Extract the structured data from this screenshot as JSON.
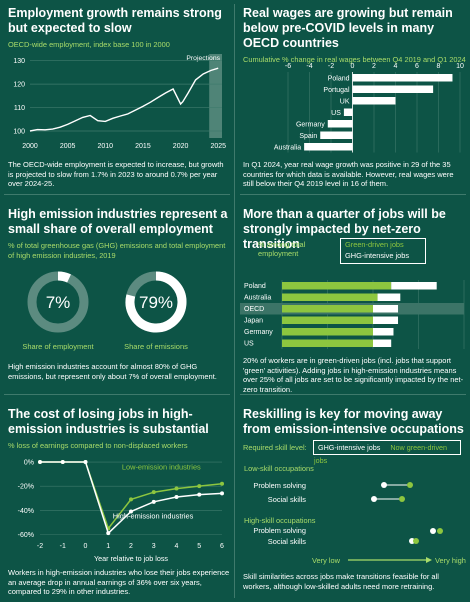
{
  "colors": {
    "bg": "#0d5446",
    "green": "#8dc63f",
    "lightgreen": "#a9dc6a",
    "white": "#ffffff",
    "grid": "#3f7a6c"
  },
  "panel1": {
    "title": "Employment growth remains strong but expected to slow",
    "subtitle": "OECD-wide employment, index base 100 in 2000",
    "projections_label": "Projections",
    "text": "The OECD-wide employment is expected to increase, but growth is projected to slow from 1.7% in 2023 to around 0.7% per year over 2024-25."
  },
  "panel2": {
    "title": "Real wages are growing but remain below pre-COVID levels in many OECD countries",
    "subtitle": "Cumulative % change in real wages between Q4 2019 and Q1 2024",
    "text": "In Q1 2024, year real wage growth was positive in 29 of the 35 countries for which data is available. However, real wages were still below their Q4 2019 level in 16 of them."
  },
  "panel3": {
    "title": "High emission industries represent a small share of overall employment",
    "subtitle": "% of total greenhouse gas (GHG) emissions and total employment of high emission industries, 2019",
    "donut1_value": "7%",
    "donut1_label": "Share of employment",
    "donut1_pct": 7,
    "donut2_value": "79%",
    "donut2_label": "Share of emissions",
    "donut2_pct": 79,
    "text": "High emission industries account for almost 80% of GHG emissions, but represent only about 7% of overall employment."
  },
  "panel4": {
    "title": "More than a quarter of jobs will be strongly impacted by net-zero transition",
    "axis_label": "% among total employment",
    "legend_green": "Green-driven jobs",
    "legend_white": "GHG-intensive jobs",
    "text": "20% of workers are in green-driven jobs (incl. jobs that support 'green' activities). Adding jobs in high-emission industries means over 25% of all jobs are set to be significantly impacted by the net-zero transition."
  },
  "panel5": {
    "title": "The cost of losing jobs in high-emission industries is substantial",
    "subtitle": "% loss of earnings compared to non-displaced workers",
    "label_low": "Low-emission industries",
    "label_high": "High-emission industries",
    "text": "Workers in high-emission industries who lose their jobs experience an average drop in annual earnings of 36% over six years, compared to 29% in other industries."
  },
  "panel6": {
    "title": "Reskilling is key for moving away from emission-intensive occupations",
    "req_label": "Required skill level:",
    "legend_white": "GHG-intensive jobs",
    "legend_green": "Now green-driven jobs",
    "group_low": "Low-skill occupations",
    "group_high": "High-skill occupations",
    "row_problem": "Problem solving",
    "row_social": "Social skills",
    "very_low": "Very low",
    "very_high": "Very high",
    "text": "Skill similarities across jobs make transitions feasible for all workers, although low-skilled adults need more retraining."
  },
  "chart_data": [
    {
      "type": "line",
      "title": "Employment growth remains strong but expected to slow",
      "x_ticks": [
        "2000",
        "2005",
        "2010",
        "2015",
        "2020",
        "2025"
      ],
      "y_ticks": [
        "100",
        "110",
        "120",
        "130"
      ],
      "xlim": [
        2000,
        2025.5
      ],
      "ylim": [
        97,
        132
      ],
      "projection_start": 2023.8,
      "points": [
        [
          2000,
          100
        ],
        [
          2001,
          100.6
        ],
        [
          2002,
          100.5
        ],
        [
          2003,
          100.8
        ],
        [
          2004,
          101.6
        ],
        [
          2005,
          102.8
        ],
        [
          2006,
          104.3
        ],
        [
          2007,
          105.8
        ],
        [
          2008,
          106.6
        ],
        [
          2009,
          104.4
        ],
        [
          2010,
          104.1
        ],
        [
          2011,
          105.4
        ],
        [
          2012,
          106.4
        ],
        [
          2013,
          107.3
        ],
        [
          2014,
          108.9
        ],
        [
          2015,
          110.5
        ],
        [
          2016,
          112.3
        ],
        [
          2017,
          114.3
        ],
        [
          2018,
          116.2
        ],
        [
          2019,
          117.9
        ],
        [
          2020,
          111.5
        ],
        [
          2020.3,
          112.5
        ],
        [
          2021,
          116.2
        ],
        [
          2022,
          121.8
        ],
        [
          2023,
          124.3
        ],
        [
          2024,
          125.8
        ],
        [
          2025,
          126.8
        ]
      ]
    },
    {
      "type": "bar",
      "title": "Real wages are growing but remain below pre-COVID levels in many OECD countries",
      "x_ticks": [
        "-6",
        "-4",
        "-2",
        "0",
        "2",
        "4",
        "6",
        "8",
        "10"
      ],
      "xlim": [
        -6,
        10
      ],
      "categories": [
        "Poland",
        "Portugal",
        "UK",
        "US",
        "Germany",
        "Spain",
        "Australia"
      ],
      "values": [
        9.3,
        7.5,
        4.0,
        -0.8,
        -2.3,
        -3.0,
        -4.5
      ]
    },
    {
      "type": "bar",
      "title": "More than a quarter of jobs will be strongly impacted by net-zero transition",
      "categories": [
        "Poland",
        "Australia",
        "OECD",
        "Japan",
        "Germany",
        "US"
      ],
      "series": [
        {
          "name": "Green-driven jobs",
          "values": [
            24,
            21,
            20,
            20,
            20,
            20
          ]
        },
        {
          "name": "GHG-intensive jobs",
          "values": [
            10,
            5,
            5.5,
            5.5,
            4.5,
            4
          ]
        }
      ],
      "xlim": [
        0,
        40
      ]
    },
    {
      "type": "line",
      "title": "The cost of losing jobs in high-emission industries is substantial",
      "xlabel": "Year relative to job loss",
      "x_ticks": [
        "-2",
        "-1",
        "0",
        "1",
        "2",
        "3",
        "4",
        "5",
        "6"
      ],
      "y_ticks": [
        "0%",
        "-20%",
        "-40%",
        "-60%"
      ],
      "ylim": [
        -63,
        5
      ],
      "series": [
        {
          "name": "Low-emission industries",
          "x": [
            -2,
            -1,
            0,
            1,
            2,
            3,
            4,
            5,
            6
          ],
          "values": [
            0,
            0,
            0,
            -55,
            -31,
            -25,
            -22,
            -20,
            -18
          ]
        },
        {
          "name": "High-emission industries",
          "x": [
            -2,
            -1,
            0,
            1,
            2,
            3,
            4,
            5,
            6
          ],
          "values": [
            0,
            0,
            0,
            -59,
            -41,
            -33,
            -29,
            -27,
            -26
          ]
        }
      ]
    }
  ]
}
